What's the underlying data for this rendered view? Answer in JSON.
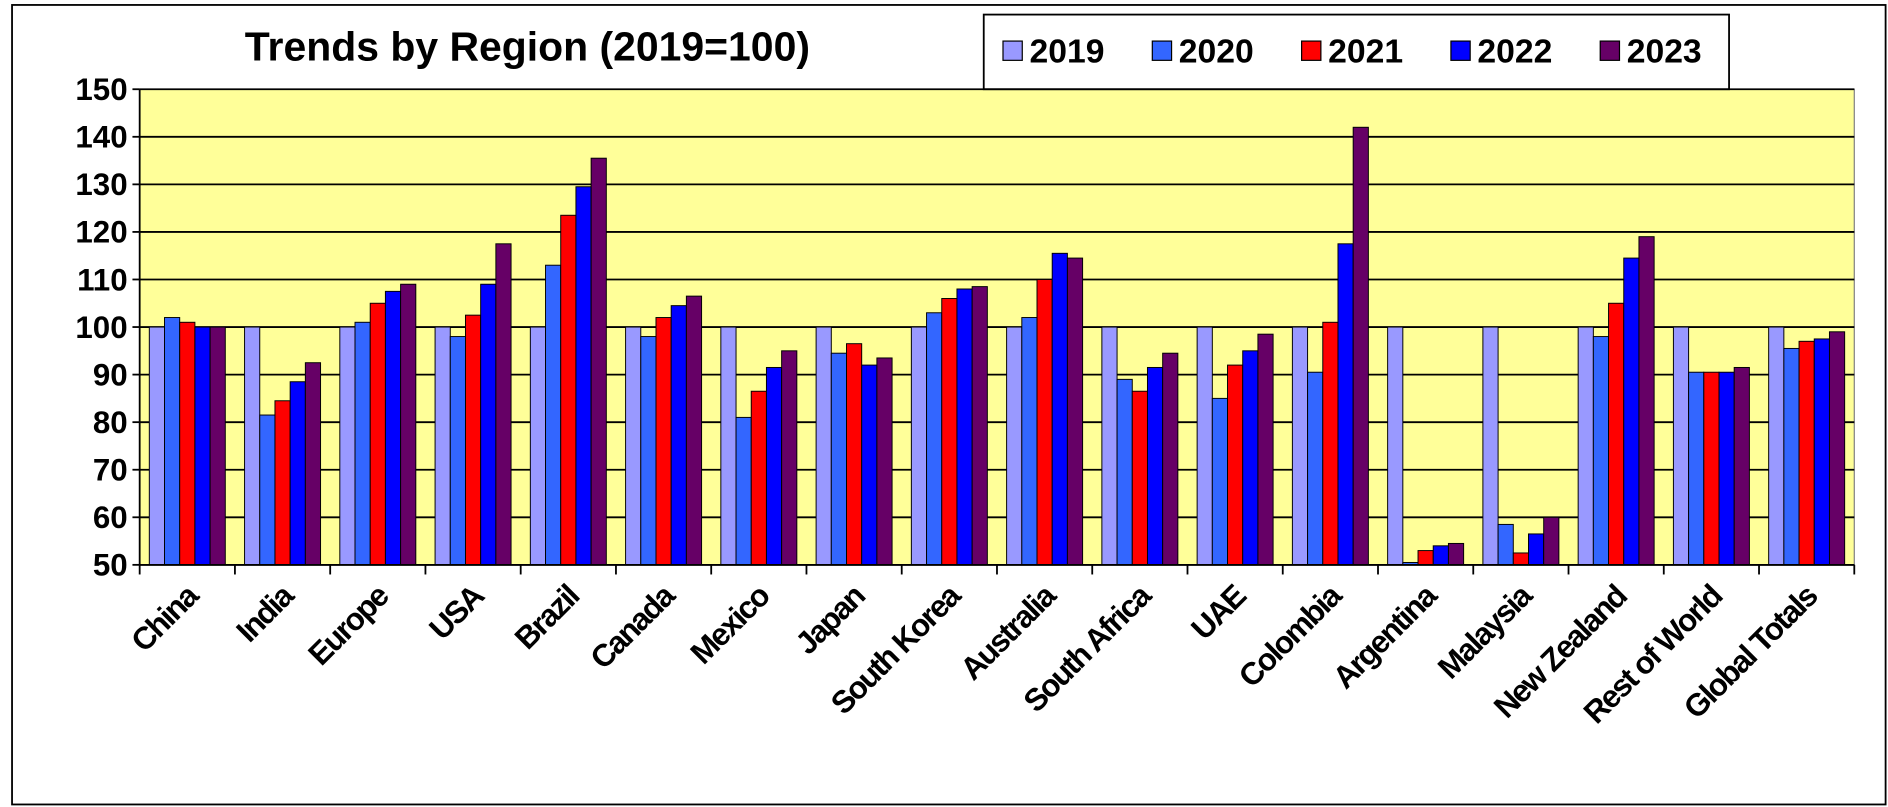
{
  "chart_data": {
    "type": "bar",
    "title": "Trends by Region (2019=100)",
    "categories": [
      "China",
      "India",
      "Europe",
      "USA",
      "Brazil",
      "Canada",
      "Mexico",
      "Japan",
      "South Korea",
      "Australia",
      "South Africa",
      "UAE",
      "Colombia",
      "Argentina",
      "Malaysia",
      "New Zealand",
      "Rest of World",
      "Global Totals"
    ],
    "series": [
      {
        "name": "2019",
        "color": "#9999ff",
        "values": [
          100,
          100,
          100,
          100,
          100,
          100,
          100,
          100,
          100,
          100,
          100,
          100,
          100,
          100,
          100,
          100,
          100,
          100
        ]
      },
      {
        "name": "2020",
        "color": "#3366ff",
        "values": [
          102,
          81.5,
          101,
          98,
          113,
          98,
          81,
          94.5,
          103,
          102,
          89,
          85,
          90.5,
          50.5,
          58.5,
          98,
          90.5,
          95.5
        ]
      },
      {
        "name": "2021",
        "color": "#ff0000",
        "values": [
          101,
          84.5,
          105,
          102.5,
          123.5,
          102,
          86.5,
          96.5,
          106,
          110,
          86.5,
          92,
          101,
          53,
          52.5,
          105,
          90.5,
          97
        ]
      },
      {
        "name": "2022",
        "color": "#0000ff",
        "values": [
          100,
          88.5,
          107.5,
          109,
          129.5,
          104.5,
          91.5,
          92,
          108,
          115.5,
          91.5,
          95,
          117.5,
          54,
          56.5,
          114.5,
          90.5,
          97.5
        ]
      },
      {
        "name": "2023",
        "color": "#660066",
        "values": [
          100,
          92.5,
          109,
          117.5,
          135.5,
          106.5,
          95,
          93.5,
          108.5,
          114.5,
          94.5,
          98.5,
          142,
          54.5,
          60,
          119,
          91.5,
          99
        ]
      }
    ],
    "ylim": [
      50,
      150
    ],
    "yticks": [
      50,
      60,
      70,
      80,
      90,
      100,
      110,
      120,
      130,
      140,
      150
    ],
    "grid": true,
    "legend": "top"
  }
}
